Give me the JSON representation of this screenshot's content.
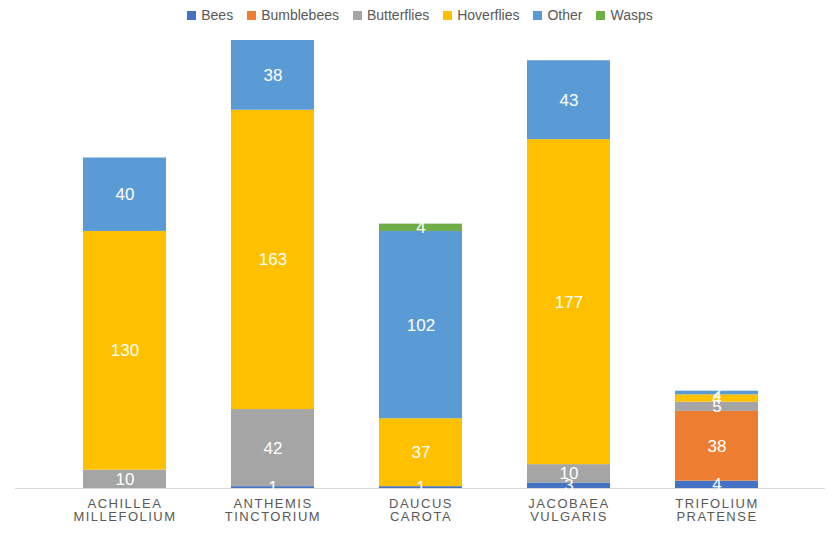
{
  "chart_data": {
    "type": "bar",
    "stacked": true,
    "data_labels": true,
    "tick_labels": "x",
    "legend": "top",
    "categories": [
      "ACHILLEA MILLEFOLIUM",
      "ANTHEMIS TINCTORIUM",
      "DAUCUS CAROTA",
      "JACOBAEA VULGARIS",
      "TRIFOLIUM PRATENSE"
    ],
    "series": [
      {
        "name": "Bees",
        "color": "#4472c4",
        "values": [
          null,
          1,
          1,
          3,
          4
        ]
      },
      {
        "name": "Bumblebees",
        "color": "#ed7d31",
        "values": [
          null,
          null,
          null,
          null,
          38
        ]
      },
      {
        "name": "Butterflies",
        "color": "#a5a5a5",
        "values": [
          10,
          42,
          null,
          10,
          5
        ]
      },
      {
        "name": "Hoverflies",
        "color": "#ffc000",
        "values": [
          130,
          163,
          37,
          177,
          4
        ]
      },
      {
        "name": "Other",
        "color": "#5b9bd5",
        "values": [
          40,
          38,
          102,
          43,
          2
        ]
      },
      {
        "name": "Wasps",
        "color": "#70ad47",
        "values": [
          null,
          null,
          4,
          null,
          null
        ]
      }
    ],
    "ylim": [
      0,
      244
    ],
    "yticks": []
  }
}
